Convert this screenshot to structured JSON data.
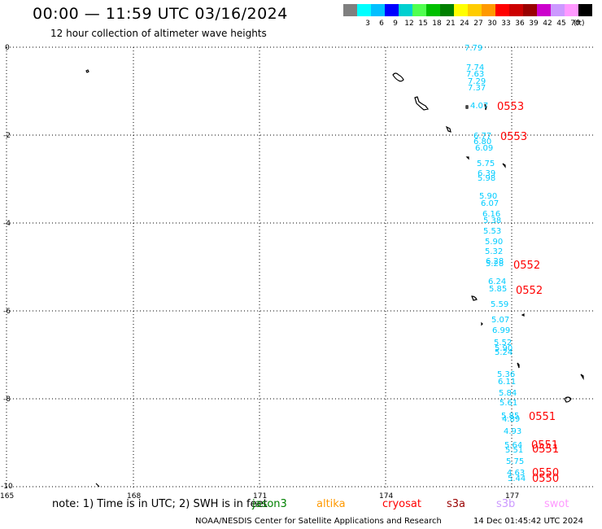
{
  "header": {
    "title": "00:00 — 11:59 UTC 03/16/2024",
    "subtitle": "12 hour collection of altimeter wave heights"
  },
  "legend": {
    "unit": "(ft)",
    "swatches": [
      {
        "label": "",
        "color": "#7f7f7f"
      },
      {
        "label": "3",
        "color": "#00ffff"
      },
      {
        "label": "6",
        "color": "#00bfff"
      },
      {
        "label": "9",
        "color": "#0000ff"
      },
      {
        "label": "12",
        "color": "#00d0d0"
      },
      {
        "label": "15",
        "color": "#50ff50"
      },
      {
        "label": "18",
        "color": "#00c000"
      },
      {
        "label": "21",
        "color": "#008000"
      },
      {
        "label": "24",
        "color": "#ffff00"
      },
      {
        "label": "27",
        "color": "#ffcc00"
      },
      {
        "label": "30",
        "color": "#ff9900"
      },
      {
        "label": "33",
        "color": "#ff0000"
      },
      {
        "label": "36",
        "color": "#cc0000"
      },
      {
        "label": "39",
        "color": "#990000"
      },
      {
        "label": "42",
        "color": "#cc00cc"
      },
      {
        "label": "45",
        "color": "#cc99ff"
      },
      {
        "label": "70",
        "color": "#ff99ff"
      },
      {
        "label": "",
        "color": "#000000"
      }
    ]
  },
  "axes": {
    "lon_ticks": [
      "165",
      "168",
      "171",
      "174",
      "177"
    ],
    "lat_ticks": [
      "0",
      "-2",
      "-4",
      "-6",
      "-8",
      "-10"
    ]
  },
  "track": {
    "color": "#00ccff",
    "values": [
      "7.79",
      "7.74",
      "7.63",
      "7.29",
      "7.37",
      "4.07",
      "6.77",
      "6.80",
      "6.09",
      "5.75",
      "6.39",
      "5.98",
      "5.90",
      "6.07",
      "6.16",
      "5.38",
      "5.53",
      "5.90",
      "5.32",
      "6.28",
      "5.28",
      "6.24",
      "5.85",
      "5.59",
      "5.07",
      "6.99",
      "5.52",
      "5.90",
      "5.24",
      "5.36",
      "6.11",
      "5.84",
      "5.61",
      "5.85",
      "4.89",
      "4.93",
      "5.64",
      "5.51",
      "5.75",
      "4.63",
      "5.44"
    ],
    "pass_color": "#ff0000",
    "pass_labels": [
      "0553",
      "0553",
      "0552",
      "0552",
      "0551",
      "0551",
      "0551",
      "0550",
      "0550"
    ]
  },
  "note": {
    "text": "note: 1) Time is in UTC; 2) SWH is in feet"
  },
  "satellites": [
    {
      "name": "jason3",
      "color": "#008000"
    },
    {
      "name": "altika",
      "color": "#ff9900"
    },
    {
      "name": "cryosat",
      "color": "#ff0000"
    },
    {
      "name": "s3a",
      "color": "#990000"
    },
    {
      "name": "s3b",
      "color": "#cc99ff"
    },
    {
      "name": "swot",
      "color": "#ff99ff"
    }
  ],
  "footer": {
    "credit": "NOAA/NESDIS Center for Satellite Applications and Research",
    "timestamp": "14 Dec 01:45:42 UTC 2024"
  },
  "icons": [
    "island-outline-icon"
  ]
}
